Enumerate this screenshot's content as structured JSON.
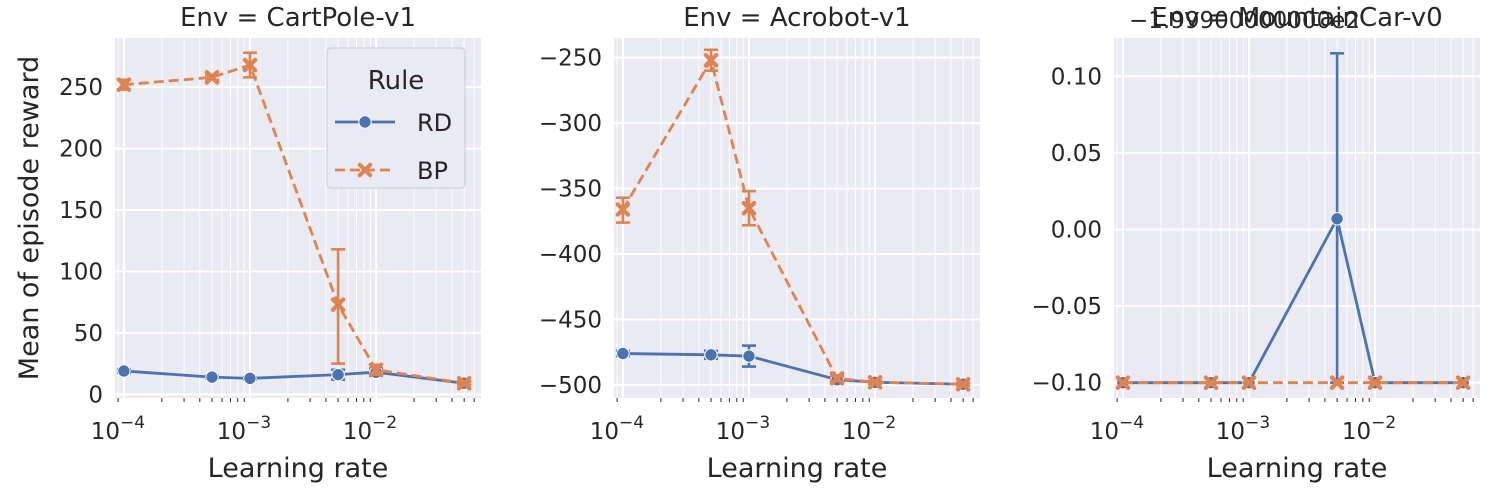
{
  "chart_data": [
    {
      "type": "line",
      "title": "Env = CartPole-v1",
      "xlabel": "Learning rate",
      "ylabel": "Mean of episode reward",
      "xscale": "log",
      "xlim": [
        8.5e-05,
        0.068
      ],
      "ylim": [
        -3,
        290
      ],
      "xticks": [
        {
          "value": 0.0001,
          "base": "10",
          "exp": "−4"
        },
        {
          "value": 0.001,
          "base": "10",
          "exp": "−3"
        },
        {
          "value": 0.01,
          "base": "10",
          "exp": "−2"
        }
      ],
      "yticks": [
        {
          "value": 0,
          "label": "0"
        },
        {
          "value": 50,
          "label": "50"
        },
        {
          "value": 100,
          "label": "100"
        },
        {
          "value": 150,
          "label": "150"
        },
        {
          "value": 200,
          "label": "200"
        },
        {
          "value": 250,
          "label": "250"
        }
      ],
      "x": [
        0.0001,
        0.0005,
        0.001,
        0.005,
        0.01,
        0.05
      ],
      "series": [
        {
          "name": "RD",
          "values": [
            19,
            14,
            13,
            16,
            18,
            9
          ],
          "err_low": [
            17.5,
            13,
            12,
            12,
            15,
            7.5
          ],
          "err_high": [
            20.5,
            15,
            14,
            20,
            21,
            10.5
          ]
        },
        {
          "name": "BP",
          "values": [
            252,
            258,
            268,
            73,
            20,
            9
          ],
          "err_low": [
            248,
            256,
            258,
            25,
            16,
            8
          ],
          "err_high": [
            256,
            260,
            278,
            118,
            24,
            10.5
          ]
        }
      ],
      "legend": {
        "title": "Rule",
        "location": "top-right"
      },
      "grid": true
    },
    {
      "type": "line",
      "title": "Env = Acrobot-v1",
      "xlabel": "Learning rate",
      "ylabel": "",
      "xscale": "log",
      "xlim": [
        8.5e-05,
        0.068
      ],
      "ylim": [
        -510,
        -235
      ],
      "xticks": [
        {
          "value": 0.0001,
          "base": "10",
          "exp": "−4"
        },
        {
          "value": 0.001,
          "base": "10",
          "exp": "−3"
        },
        {
          "value": 0.01,
          "base": "10",
          "exp": "−2"
        }
      ],
      "yticks": [
        {
          "value": -500,
          "label": "−500"
        },
        {
          "value": -450,
          "label": "−450"
        },
        {
          "value": -400,
          "label": "−400"
        },
        {
          "value": -350,
          "label": "−350"
        },
        {
          "value": -300,
          "label": "−300"
        },
        {
          "value": -250,
          "label": "−250"
        }
      ],
      "x": [
        0.0001,
        0.0005,
        0.001,
        0.005,
        0.01,
        0.05
      ],
      "series": [
        {
          "name": "RD",
          "values": [
            -476,
            -477,
            -478,
            -496,
            -498,
            -499.5
          ],
          "err_low": [
            -478,
            -480,
            -486,
            -498,
            -499,
            -500.5
          ],
          "err_high": [
            -474,
            -474,
            -470,
            -494,
            -497,
            -498.5
          ]
        },
        {
          "name": "BP",
          "values": [
            -366,
            -252,
            -365,
            -495,
            -498,
            -499.5
          ],
          "err_low": [
            -376,
            -260,
            -378,
            -497,
            -499,
            -500.5
          ],
          "err_high": [
            -357,
            -244,
            -352,
            -493,
            -497,
            -498.5
          ]
        }
      ],
      "grid": true
    },
    {
      "type": "line",
      "title": "Env = MountainCar-v0",
      "offset_text": "−1.99900000000e2",
      "xlabel": "Learning rate",
      "ylabel": "",
      "xscale": "log",
      "xlim": [
        8.5e-05,
        0.068
      ],
      "ylim": [
        -0.11,
        0.125
      ],
      "xticks": [
        {
          "value": 0.0001,
          "base": "10",
          "exp": "−4"
        },
        {
          "value": 0.001,
          "base": "10",
          "exp": "−3"
        },
        {
          "value": 0.01,
          "base": "10",
          "exp": "−2"
        }
      ],
      "yticks": [
        {
          "value": -0.1,
          "label": "−0.10"
        },
        {
          "value": -0.05,
          "label": "−0.05"
        },
        {
          "value": 0.0,
          "label": "0.00"
        },
        {
          "value": 0.05,
          "label": "0.05"
        },
        {
          "value": 0.1,
          "label": "0.10"
        }
      ],
      "x": [
        0.0001,
        0.0005,
        0.001,
        0.005,
        0.01,
        0.05
      ],
      "series": [
        {
          "name": "RD",
          "values": [
            -0.1,
            -0.1,
            -0.1,
            0.007,
            -0.1,
            -0.1
          ],
          "err_low": [
            -0.1,
            -0.1,
            -0.1,
            -0.1,
            -0.1,
            -0.1
          ],
          "err_high": [
            -0.1,
            -0.1,
            -0.1,
            0.115,
            -0.1,
            -0.1
          ]
        },
        {
          "name": "BP",
          "values": [
            -0.1,
            -0.1,
            -0.1,
            -0.1,
            -0.1,
            -0.1
          ],
          "err_low": [
            -0.1,
            -0.1,
            -0.1,
            -0.1,
            -0.1,
            -0.1
          ],
          "err_high": [
            -0.1,
            -0.1,
            -0.1,
            -0.1,
            -0.1,
            -0.1
          ]
        }
      ],
      "grid": true
    }
  ],
  "colors": {
    "RD": "#4c72b0",
    "BP": "#dd8452",
    "axes_bg": "#eaeaf2",
    "grid": "#ffffff"
  }
}
